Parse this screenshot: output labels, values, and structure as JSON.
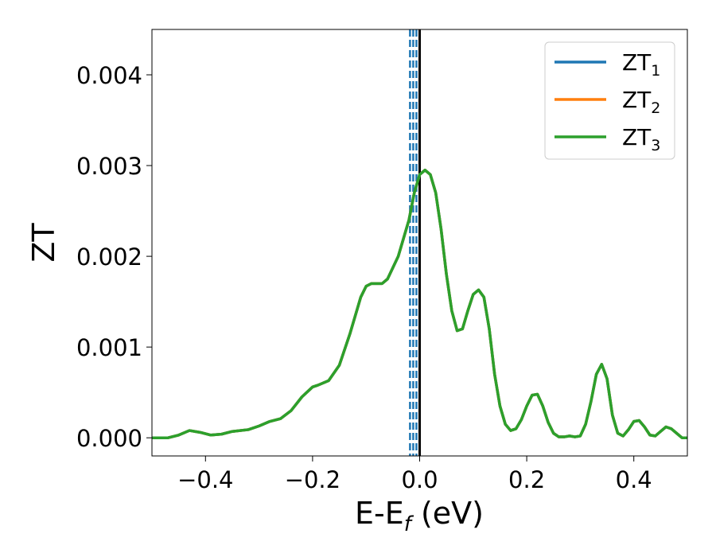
{
  "chart_data": {
    "type": "line",
    "xlabel": "E-E",
    "xlabel_sub": "f",
    "xlabel_unit": " (eV)",
    "ylabel": "ZT",
    "xlim": [
      -0.5,
      0.5
    ],
    "ylim": [
      -0.0002,
      0.0045
    ],
    "x_ticks": [
      -0.4,
      -0.2,
      0.0,
      0.2,
      0.4
    ],
    "x_tick_labels": [
      "−0.4",
      "−0.2",
      "0.0",
      "0.2",
      "0.4"
    ],
    "y_ticks": [
      0.0,
      0.001,
      0.002,
      0.003,
      0.004
    ],
    "y_tick_labels": [
      "0.000",
      "0.001",
      "0.002",
      "0.003",
      "0.004"
    ],
    "grid": false,
    "legend_position": "top-right",
    "series": [
      {
        "name": "ZT",
        "name_sub": "1",
        "color": "#1f77b4",
        "x": [
          -0.5,
          -0.47,
          -0.45,
          -0.43,
          -0.41,
          -0.39,
          -0.37,
          -0.35,
          -0.32,
          -0.3,
          -0.28,
          -0.26,
          -0.24,
          -0.22,
          -0.2,
          -0.19,
          -0.17,
          -0.15,
          -0.13,
          -0.11,
          -0.1,
          -0.09,
          -0.08,
          -0.07,
          -0.06,
          -0.04,
          -0.02,
          -0.01,
          0.0,
          0.01,
          0.02,
          0.03,
          0.04,
          0.05,
          0.06,
          0.07,
          0.08,
          0.09,
          0.1,
          0.11,
          0.12,
          0.13,
          0.14,
          0.15,
          0.16,
          0.17,
          0.18,
          0.19,
          0.2,
          0.21,
          0.22,
          0.23,
          0.24,
          0.25,
          0.26,
          0.27,
          0.28,
          0.29,
          0.3,
          0.31,
          0.32,
          0.33,
          0.34,
          0.35,
          0.36,
          0.37,
          0.38,
          0.39,
          0.4,
          0.41,
          0.42,
          0.43,
          0.44,
          0.45,
          0.46,
          0.47,
          0.48,
          0.49,
          0.5
        ],
        "y": [
          0.0,
          0.0,
          3e-05,
          8e-05,
          6e-05,
          3e-05,
          4e-05,
          7e-05,
          9e-05,
          0.00013,
          0.00018,
          0.00021,
          0.0003,
          0.00045,
          0.00056,
          0.00058,
          0.00063,
          0.0008,
          0.00115,
          0.00155,
          0.00167,
          0.0017,
          0.0017,
          0.0017,
          0.00175,
          0.002,
          0.0024,
          0.0027,
          0.0029,
          0.00295,
          0.0029,
          0.0027,
          0.0023,
          0.0018,
          0.0014,
          0.00118,
          0.0012,
          0.0014,
          0.00158,
          0.00163,
          0.00155,
          0.0012,
          0.0007,
          0.00035,
          0.00015,
          8e-05,
          0.0001,
          0.0002,
          0.00035,
          0.00047,
          0.00048,
          0.00035,
          0.00017,
          5e-05,
          1e-05,
          1e-05,
          2e-05,
          1e-05,
          2e-05,
          0.00015,
          0.0004,
          0.0007,
          0.00081,
          0.00065,
          0.00025,
          5e-05,
          2e-05,
          9e-05,
          0.00018,
          0.00019,
          0.00012,
          3e-05,
          2e-05,
          7e-05,
          0.00012,
          0.0001,
          5e-05,
          0.0,
          0.0
        ]
      },
      {
        "name": "ZT",
        "name_sub": "2",
        "color": "#ff7f0e",
        "x": [
          -0.5,
          -0.47,
          -0.45,
          -0.43,
          -0.41,
          -0.39,
          -0.37,
          -0.35,
          -0.32,
          -0.3,
          -0.28,
          -0.26,
          -0.24,
          -0.22,
          -0.2,
          -0.19,
          -0.17,
          -0.15,
          -0.13,
          -0.11,
          -0.1,
          -0.09,
          -0.08,
          -0.07,
          -0.06,
          -0.04,
          -0.02,
          -0.01,
          0.0,
          0.01,
          0.02,
          0.03,
          0.04,
          0.05,
          0.06,
          0.07,
          0.08,
          0.09,
          0.1,
          0.11,
          0.12,
          0.13,
          0.14,
          0.15,
          0.16,
          0.17,
          0.18,
          0.19,
          0.2,
          0.21,
          0.22,
          0.23,
          0.24,
          0.25,
          0.26,
          0.27,
          0.28,
          0.29,
          0.3,
          0.31,
          0.32,
          0.33,
          0.34,
          0.35,
          0.36,
          0.37,
          0.38,
          0.39,
          0.4,
          0.41,
          0.42,
          0.43,
          0.44,
          0.45,
          0.46,
          0.47,
          0.48,
          0.49,
          0.5
        ],
        "y": [
          0.0,
          0.0,
          3e-05,
          8e-05,
          6e-05,
          3e-05,
          4e-05,
          7e-05,
          9e-05,
          0.00013,
          0.00018,
          0.00021,
          0.0003,
          0.00045,
          0.00056,
          0.00058,
          0.00063,
          0.0008,
          0.00115,
          0.00155,
          0.00167,
          0.0017,
          0.0017,
          0.0017,
          0.00175,
          0.002,
          0.0024,
          0.0027,
          0.0029,
          0.00295,
          0.0029,
          0.0027,
          0.0023,
          0.0018,
          0.0014,
          0.00118,
          0.0012,
          0.0014,
          0.00158,
          0.00163,
          0.00155,
          0.0012,
          0.0007,
          0.00035,
          0.00015,
          8e-05,
          0.0001,
          0.0002,
          0.00035,
          0.00047,
          0.00048,
          0.00035,
          0.00017,
          5e-05,
          1e-05,
          1e-05,
          2e-05,
          1e-05,
          2e-05,
          0.00015,
          0.0004,
          0.0007,
          0.00081,
          0.00065,
          0.00025,
          5e-05,
          2e-05,
          9e-05,
          0.00018,
          0.00019,
          0.00012,
          3e-05,
          2e-05,
          7e-05,
          0.00012,
          0.0001,
          5e-05,
          0.0,
          0.0
        ]
      },
      {
        "name": "ZT",
        "name_sub": "3",
        "color": "#2ca02c",
        "x": [
          -0.5,
          -0.47,
          -0.45,
          -0.43,
          -0.41,
          -0.39,
          -0.37,
          -0.35,
          -0.32,
          -0.3,
          -0.28,
          -0.26,
          -0.24,
          -0.22,
          -0.2,
          -0.19,
          -0.17,
          -0.15,
          -0.13,
          -0.11,
          -0.1,
          -0.09,
          -0.08,
          -0.07,
          -0.06,
          -0.04,
          -0.02,
          -0.01,
          0.0,
          0.01,
          0.02,
          0.03,
          0.04,
          0.05,
          0.06,
          0.07,
          0.08,
          0.09,
          0.1,
          0.11,
          0.12,
          0.13,
          0.14,
          0.15,
          0.16,
          0.17,
          0.18,
          0.19,
          0.2,
          0.21,
          0.22,
          0.23,
          0.24,
          0.25,
          0.26,
          0.27,
          0.28,
          0.29,
          0.3,
          0.31,
          0.32,
          0.33,
          0.34,
          0.35,
          0.36,
          0.37,
          0.38,
          0.39,
          0.4,
          0.41,
          0.42,
          0.43,
          0.44,
          0.45,
          0.46,
          0.47,
          0.48,
          0.49,
          0.5
        ],
        "y": [
          0.0,
          0.0,
          3e-05,
          8e-05,
          6e-05,
          3e-05,
          4e-05,
          7e-05,
          9e-05,
          0.00013,
          0.00018,
          0.00021,
          0.0003,
          0.00045,
          0.00056,
          0.00058,
          0.00063,
          0.0008,
          0.00115,
          0.00155,
          0.00167,
          0.0017,
          0.0017,
          0.0017,
          0.00175,
          0.002,
          0.0024,
          0.0027,
          0.0029,
          0.00295,
          0.0029,
          0.0027,
          0.0023,
          0.0018,
          0.0014,
          0.00118,
          0.0012,
          0.0014,
          0.00158,
          0.00163,
          0.00155,
          0.0012,
          0.0007,
          0.00035,
          0.00015,
          8e-05,
          0.0001,
          0.0002,
          0.00035,
          0.00047,
          0.00048,
          0.00035,
          0.00017,
          5e-05,
          1e-05,
          1e-05,
          2e-05,
          1e-05,
          2e-05,
          0.00015,
          0.0004,
          0.0007,
          0.00081,
          0.00065,
          0.00025,
          5e-05,
          2e-05,
          9e-05,
          0.00018,
          0.00019,
          0.00012,
          3e-05,
          2e-05,
          7e-05,
          0.00012,
          0.0001,
          5e-05,
          0.0,
          0.0
        ]
      }
    ],
    "vertical_lines": [
      {
        "x": -0.018,
        "style": "dashed",
        "color": "#1f77b4"
      },
      {
        "x": -0.012,
        "style": "dashed",
        "color": "#1f77b4"
      },
      {
        "x": -0.006,
        "style": "dashed",
        "color": "#1f77b4"
      },
      {
        "x": 0.0,
        "style": "solid",
        "color": "#000000"
      }
    ]
  }
}
